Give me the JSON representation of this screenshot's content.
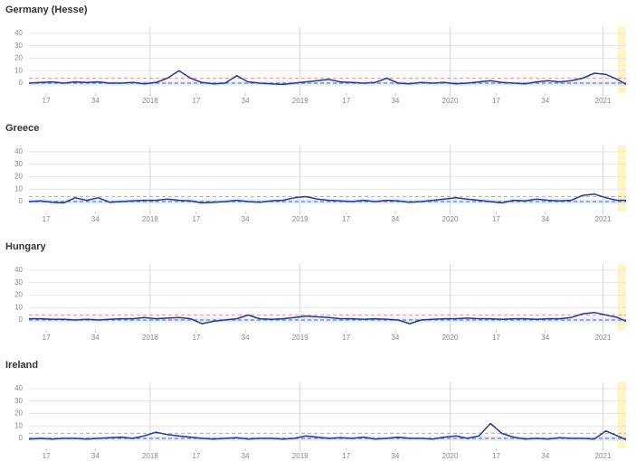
{
  "chart_data": [
    {
      "type": "line",
      "title": "Germany (Hesse)",
      "color": "#1f3c99",
      "x": [
        -42,
        -38,
        -34,
        -30,
        -26,
        -22,
        -18,
        -14,
        -10,
        -6,
        -2,
        2,
        6,
        10,
        14,
        18,
        22,
        26,
        30,
        34,
        38,
        42,
        46,
        50,
        54,
        58,
        62,
        66,
        70,
        74,
        78,
        82,
        86,
        90,
        94,
        98,
        102,
        106,
        110,
        114,
        118,
        122,
        126,
        130,
        134,
        138,
        142,
        146,
        150,
        154,
        158,
        162,
        165
      ],
      "values": [
        0,
        0.5,
        1,
        0,
        1,
        0.5,
        1,
        0,
        0,
        0.5,
        -0.5,
        0.5,
        4,
        10,
        4,
        0.5,
        -0.5,
        0,
        6,
        1,
        0,
        -0.5,
        -1,
        0,
        1,
        2,
        3,
        1,
        0.5,
        0,
        0.5,
        4,
        0,
        -0.5,
        0.5,
        0,
        0.5,
        -0.5,
        0,
        1,
        2,
        0.5,
        0,
        -0.5,
        1,
        2,
        1,
        2,
        4,
        8,
        7,
        3,
        -1
      ],
      "xlim": [
        -42,
        165
      ],
      "ylim": [
        -8,
        45
      ],
      "yticks": [
        0,
        10,
        20,
        30,
        40
      ],
      "xticks": [
        {
          "value": -36,
          "label": "17"
        },
        {
          "value": -19,
          "label": "34"
        },
        {
          "value": 0,
          "label": "2018",
          "major": true
        },
        {
          "value": 16,
          "label": "17"
        },
        {
          "value": 33,
          "label": "34"
        },
        {
          "value": 52,
          "label": "2019",
          "major": true
        },
        {
          "value": 68,
          "label": "17"
        },
        {
          "value": 85,
          "label": "34"
        },
        {
          "value": 104,
          "label": "2020",
          "major": true
        },
        {
          "value": 120,
          "label": "17"
        },
        {
          "value": 137,
          "label": "34"
        },
        {
          "value": 157,
          "label": "2021",
          "major": true
        }
      ],
      "band": [
        -2,
        2
      ],
      "band_color": "#dce6f7",
      "hlines": [
        {
          "value": 0,
          "color": "#6f7fa8"
        },
        {
          "value": 4,
          "color": "#f2a0a0"
        }
      ],
      "highlight": {
        "xlim": [
          162,
          165
        ],
        "color": "#fff5c4"
      },
      "grid": true
    },
    {
      "type": "line",
      "title": "Greece",
      "color": "#1f3c99",
      "x": [
        -42,
        -38,
        -34,
        -30,
        -26,
        -22,
        -18,
        -14,
        -10,
        -6,
        -2,
        2,
        6,
        10,
        14,
        18,
        22,
        26,
        30,
        34,
        38,
        42,
        46,
        50,
        54,
        58,
        62,
        66,
        70,
        74,
        78,
        82,
        86,
        90,
        94,
        98,
        102,
        106,
        110,
        114,
        118,
        122,
        126,
        130,
        134,
        138,
        142,
        146,
        150,
        154,
        158,
        162,
        165
      ],
      "values": [
        0,
        0.5,
        -0.5,
        -1,
        3,
        1,
        3,
        -0.5,
        0,
        0.5,
        1,
        1,
        2,
        1,
        0.5,
        -1,
        -0.5,
        0,
        1,
        0,
        -0.5,
        0.5,
        1,
        3,
        4,
        2,
        1,
        0.5,
        0,
        1,
        0,
        1,
        0.5,
        -0.5,
        0,
        1,
        2,
        3,
        2,
        1,
        0,
        -1,
        1,
        0.5,
        2,
        1,
        0.5,
        1,
        5,
        6,
        3,
        1,
        1
      ],
      "xlim": [
        -42,
        165
      ],
      "ylim": [
        -8,
        45
      ],
      "yticks": [
        0,
        10,
        20,
        30,
        40
      ],
      "xticks": [
        {
          "value": -36,
          "label": "17"
        },
        {
          "value": -19,
          "label": "34"
        },
        {
          "value": 0,
          "label": "2018",
          "major": true
        },
        {
          "value": 16,
          "label": "17"
        },
        {
          "value": 33,
          "label": "34"
        },
        {
          "value": 52,
          "label": "2019",
          "major": true
        },
        {
          "value": 68,
          "label": "17"
        },
        {
          "value": 85,
          "label": "34"
        },
        {
          "value": 104,
          "label": "2020",
          "major": true
        },
        {
          "value": 120,
          "label": "17"
        },
        {
          "value": 137,
          "label": "34"
        },
        {
          "value": 157,
          "label": "2021",
          "major": true
        }
      ],
      "band": [
        -2,
        2
      ],
      "band_color": "#dce6f7",
      "hlines": [
        {
          "value": 0,
          "color": "#6f7fa8"
        },
        {
          "value": 4,
          "color": "#f2a0a0"
        }
      ],
      "highlight": {
        "xlim": [
          162,
          165
        ],
        "color": "#fff5c4"
      },
      "grid": true
    },
    {
      "type": "line",
      "title": "Hungary",
      "color": "#1f3c99",
      "x": [
        -42,
        -38,
        -34,
        -30,
        -26,
        -22,
        -18,
        -14,
        -10,
        -6,
        -2,
        2,
        6,
        10,
        14,
        18,
        22,
        26,
        30,
        34,
        38,
        42,
        46,
        50,
        54,
        58,
        62,
        66,
        70,
        74,
        78,
        82,
        86,
        90,
        94,
        98,
        102,
        106,
        110,
        114,
        118,
        122,
        126,
        130,
        134,
        138,
        142,
        146,
        150,
        154,
        158,
        162,
        165
      ],
      "values": [
        1,
        1,
        0.5,
        0.5,
        0,
        0.5,
        0,
        0.5,
        1,
        1,
        2,
        1,
        1.5,
        2,
        1,
        -3,
        -1,
        0,
        1,
        4,
        1,
        0.5,
        1,
        2,
        3,
        2.5,
        2,
        1,
        1,
        0.5,
        1,
        0.5,
        0,
        -3,
        0,
        0.5,
        1,
        1,
        1.5,
        1,
        1,
        0.5,
        1,
        1,
        0.5,
        1,
        1,
        2,
        5,
        6,
        4,
        2,
        -1
      ],
      "xlim": [
        -42,
        165
      ],
      "ylim": [
        -8,
        45
      ],
      "yticks": [
        0,
        10,
        20,
        30,
        40
      ],
      "xticks": [
        {
          "value": -36,
          "label": "17"
        },
        {
          "value": -19,
          "label": "34"
        },
        {
          "value": 0,
          "label": "2018",
          "major": true
        },
        {
          "value": 16,
          "label": "17"
        },
        {
          "value": 33,
          "label": "34"
        },
        {
          "value": 52,
          "label": "2019",
          "major": true
        },
        {
          "value": 68,
          "label": "17"
        },
        {
          "value": 85,
          "label": "34"
        },
        {
          "value": 104,
          "label": "2020",
          "major": true
        },
        {
          "value": 120,
          "label": "17"
        },
        {
          "value": 137,
          "label": "34"
        },
        {
          "value": 157,
          "label": "2021",
          "major": true
        }
      ],
      "band": [
        -2,
        2
      ],
      "band_color": "#dce6f7",
      "hlines": [
        {
          "value": 0,
          "color": "#6f7fa8"
        },
        {
          "value": 4,
          "color": "#f2a0a0"
        }
      ],
      "highlight": {
        "xlim": [
          162,
          165
        ],
        "color": "#fff5c4"
      },
      "grid": true
    },
    {
      "type": "line",
      "title": "Ireland",
      "color": "#1f3c99",
      "x": [
        -42,
        -38,
        -34,
        -30,
        -26,
        -22,
        -18,
        -14,
        -10,
        -6,
        -2,
        2,
        6,
        10,
        14,
        18,
        22,
        26,
        30,
        34,
        38,
        42,
        46,
        50,
        54,
        58,
        62,
        66,
        70,
        74,
        78,
        82,
        86,
        90,
        94,
        98,
        102,
        106,
        110,
        114,
        118,
        122,
        126,
        130,
        134,
        138,
        142,
        146,
        150,
        154,
        158,
        162,
        165
      ],
      "values": [
        -0.5,
        0,
        -0.5,
        0,
        0,
        -0.5,
        0,
        0.5,
        1,
        0,
        2,
        5,
        3,
        2,
        1,
        0,
        -0.5,
        0,
        0.5,
        -0.5,
        0,
        0,
        -0.5,
        0,
        2,
        1,
        0,
        0.5,
        0,
        1,
        -0.5,
        0,
        1,
        0,
        0,
        -0.5,
        1,
        2,
        0,
        2,
        12,
        4,
        1,
        -0.5,
        0,
        -0.5,
        0.5,
        0,
        0,
        -0.5,
        6,
        2,
        -1
      ],
      "xlim": [
        -42,
        165
      ],
      "ylim": [
        -8,
        45
      ],
      "yticks": [
        0,
        10,
        20,
        30,
        40
      ],
      "xticks": [
        {
          "value": -36,
          "label": "17"
        },
        {
          "value": -19,
          "label": "34"
        },
        {
          "value": 0,
          "label": "2018",
          "major": true
        },
        {
          "value": 16,
          "label": "17"
        },
        {
          "value": 33,
          "label": "34"
        },
        {
          "value": 52,
          "label": "2019",
          "major": true
        },
        {
          "value": 68,
          "label": "17"
        },
        {
          "value": 85,
          "label": "34"
        },
        {
          "value": 104,
          "label": "2020",
          "major": true
        },
        {
          "value": 120,
          "label": "17"
        },
        {
          "value": 137,
          "label": "34"
        },
        {
          "value": 157,
          "label": "2021",
          "major": true
        }
      ],
      "band": [
        -2,
        2
      ],
      "band_color": "#dce6f7",
      "hlines": [
        {
          "value": 0,
          "color": "#6f7fa8"
        },
        {
          "value": 4,
          "color": "#f2a0a0"
        }
      ],
      "highlight": {
        "xlim": [
          162,
          165
        ],
        "color": "#fff5c4"
      },
      "grid": true
    }
  ]
}
